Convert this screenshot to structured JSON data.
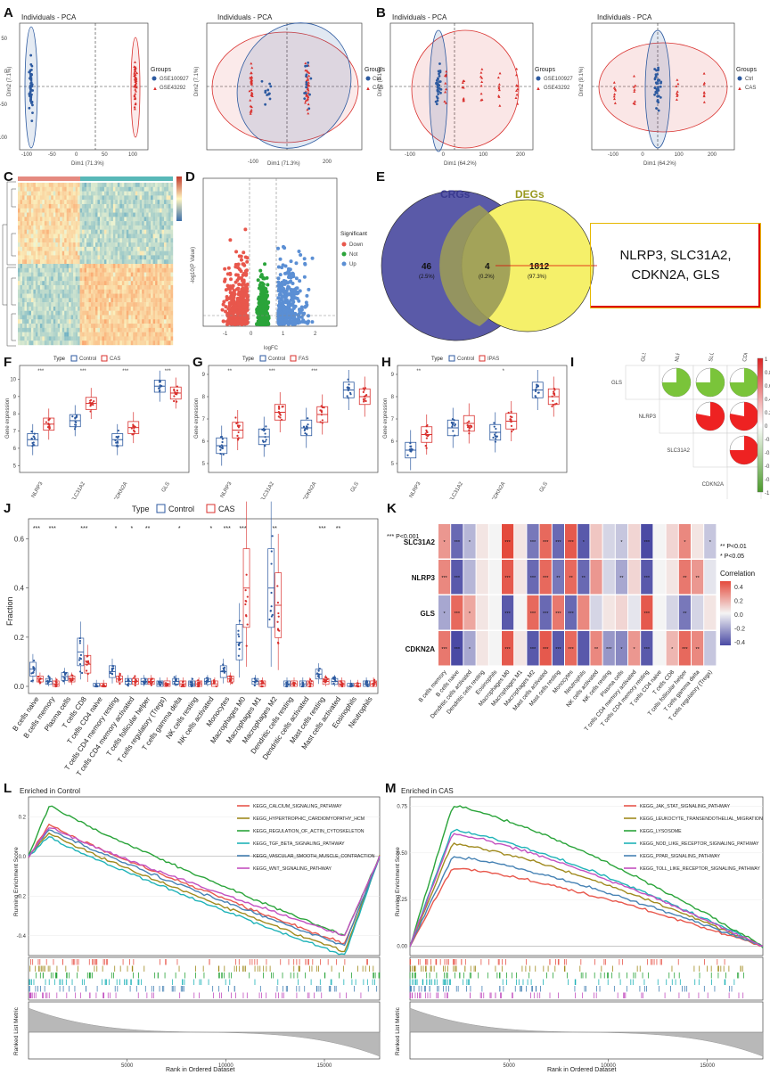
{
  "panels": {
    "A": "A",
    "B": "B",
    "C": "C",
    "D": "D",
    "E": "E",
    "F": "F",
    "G": "G",
    "H": "H",
    "I": "I",
    "J": "J",
    "K": "K",
    "L": "L",
    "M": "M"
  },
  "pca": {
    "title": "Individuals - PCA",
    "dim2_a": "Dim2 (7.1%)",
    "dim1_a": "Dim1 (71.3%)",
    "dim2_b": "Dim2 (9.1%)",
    "dim1_b": "Dim1 (64.2%)",
    "groups_label": "Groups",
    "a1_groups": [
      "GSE100927",
      "GSE43292"
    ],
    "a2_groups": [
      "Ctrl",
      "CAS"
    ],
    "a1_xticks": [
      "-100",
      "-50",
      "0",
      "50",
      "100"
    ],
    "a2_xticks": [
      "-200",
      "-100",
      "0",
      "100",
      "200"
    ],
    "b1_xticks": [
      "-100",
      "0",
      "100",
      "200"
    ],
    "b2_xticks": [
      "-100",
      "0",
      "100",
      "200"
    ],
    "yticks": [
      "50",
      "0",
      "-50",
      "-100"
    ]
  },
  "volcano": {
    "xlabel": "logFC",
    "ylabel": "-log10(P Value)",
    "legend_title": "Significant",
    "legend": [
      "Down",
      "Not",
      "Up"
    ],
    "xticks": [
      "-1",
      "0",
      "1",
      "2"
    ]
  },
  "venn": {
    "left_label": "CRGs",
    "right_label": "DEGs",
    "left_n": "46",
    "left_pct": "(2.5%)",
    "mid_n": "4",
    "mid_pct": "(0.2%)",
    "right_n": "1812",
    "right_pct": "(97.3%)",
    "genes_line1": "NLRP3, SLC31A2,",
    "genes_line2": "CDKN2A, GLS"
  },
  "boxplots": {
    "ylabel": "Gene expression",
    "type_label": "Type",
    "control": "Control",
    "f_case": "CAS",
    "g_case": "FAS",
    "h_case": "IPAS",
    "genes": [
      "NLRP3",
      "SLC31A2",
      "CDKN2A",
      "GLS"
    ],
    "f_sig": [
      "***",
      "***",
      "***",
      "***"
    ],
    "g_sig": [
      "**",
      "***",
      "***"
    ],
    "h_sig": [
      "**",
      "*"
    ],
    "f_yticks": [
      "10",
      "9",
      "8",
      "7",
      "6",
      "5"
    ],
    "g_yticks": [
      "9",
      "8",
      "7",
      "6",
      "5"
    ],
    "h_yticks": [
      "9",
      "8",
      "7",
      "6",
      "5"
    ]
  },
  "corr_matrix": {
    "genes": [
      "GLS",
      "NLRP3",
      "SLC31A2",
      "CDKN2A"
    ],
    "scale": [
      "1",
      "0.8",
      "0.6",
      "0.4",
      "0.2",
      "0",
      "-0.2",
      "-0.4",
      "-0.6",
      "-0.8",
      "-1"
    ]
  },
  "immune": {
    "ylabel": "Fraction",
    "type_label": "Type",
    "control": "Control",
    "case": "CAS",
    "yticks": [
      "0.6",
      "0.4",
      "0.2",
      "0.0"
    ],
    "cells": [
      "B cells naive",
      "B cells memory",
      "Plasma cells",
      "T cells CD8",
      "T cells CD4 naive",
      "T cells CD4 memory resting",
      "T cells CD4 memory activated",
      "T cells follicular helper",
      "T cells regulatory (Tregs)",
      "T cells gamma delta",
      "NK cells resting",
      "NK cells activated",
      "Monocytes",
      "Macrophages M0",
      "Macrophages M1",
      "Macrophages M2",
      "Dendritic cells resting",
      "Dendritic cells activated",
      "Mast cells resting",
      "Mast cells activated",
      "Eosinophils",
      "Neutrophils"
    ],
    "sig": [
      "***",
      "***",
      "",
      "***",
      "",
      "*",
      "*",
      "**",
      "",
      "*",
      "",
      "*",
      "***",
      "***",
      "",
      "**",
      "",
      "",
      "***",
      "**",
      "",
      ""
    ],
    "control_median": [
      0.07,
      0.02,
      0.04,
      0.14,
      0.0,
      0.06,
      0.02,
      0.02,
      0.01,
      0.02,
      0.01,
      0.02,
      0.06,
      0.18,
      0.02,
      0.4,
      0.01,
      0.01,
      0.05,
      0.02,
      0.0,
      0.01
    ],
    "case_median": [
      0.03,
      0.01,
      0.03,
      0.09,
      0.0,
      0.03,
      0.02,
      0.02,
      0.01,
      0.01,
      0.01,
      0.01,
      0.03,
      0.4,
      0.01,
      0.33,
      0.01,
      0.01,
      0.02,
      0.01,
      0.0,
      0.01
    ]
  },
  "corr_heatmap": {
    "rows": [
      "SLC31A2",
      "NLRP3",
      "GLS",
      "CDKN2A"
    ],
    "cols": [
      "B cells memory",
      "B cells naive",
      "Dendritic cells activated",
      "Dendritic cells resting",
      "Eosinophils",
      "Macrophages M0",
      "Macrophages M1",
      "Macrophages M2",
      "Mast cells activated",
      "Mast cells resting",
      "Monocytes",
      "Neutrophils",
      "NK cells activated",
      "NK cells resting",
      "Plasma cells",
      "T cells CD4 memory activated",
      "T cells CD4 memory resting",
      "T cells CD4 naive",
      "T cells CD8",
      "T cells follicular helper",
      "T cells gamma delta",
      "T cells regulatory (Tregs)"
    ],
    "values": [
      [
        0.3,
        -0.45,
        -0.2,
        0.05,
        0.0,
        0.55,
        0.05,
        -0.4,
        0.45,
        -0.45,
        0.5,
        -0.5,
        0.15,
        -0.1,
        -0.15,
        0.1,
        -0.55,
        0.0,
        0.1,
        0.35,
        0.05,
        -0.15
      ],
      [
        0.35,
        -0.5,
        -0.2,
        0.05,
        0.0,
        0.5,
        0.05,
        -0.45,
        0.45,
        -0.4,
        0.45,
        -0.45,
        0.3,
        -0.1,
        -0.25,
        0.1,
        -0.5,
        0.0,
        0.05,
        0.4,
        0.3,
        -0.05
      ],
      [
        -0.25,
        0.45,
        0.25,
        0.05,
        0.0,
        -0.5,
        0.0,
        0.45,
        -0.45,
        0.4,
        -0.45,
        0.35,
        -0.1,
        0.05,
        0.1,
        -0.05,
        0.5,
        0.0,
        -0.1,
        -0.4,
        -0.1,
        0.05
      ],
      [
        0.4,
        -0.55,
        -0.25,
        0.05,
        0.0,
        0.5,
        0.05,
        -0.5,
        0.5,
        -0.5,
        0.45,
        -0.5,
        0.35,
        -0.3,
        -0.35,
        0.3,
        -0.5,
        0.0,
        0.2,
        0.45,
        0.35,
        -0.15
      ]
    ],
    "stars": [
      [
        "*",
        "***",
        "*",
        "",
        "",
        "***",
        "",
        "***",
        "***",
        "***",
        "***",
        "*",
        "",
        "",
        "*",
        "",
        "***",
        "",
        "",
        "*",
        "",
        "*"
      ],
      [
        "***",
        "***",
        "",
        "",
        "",
        "***",
        "",
        "***",
        "***",
        "**",
        "**",
        "**",
        "",
        "",
        "**",
        "",
        "***",
        "",
        "",
        "**",
        "**",
        ""
      ],
      [
        "*",
        "***",
        "*",
        "",
        "",
        "***",
        "",
        "***",
        "***",
        "***",
        "***",
        "",
        "",
        "",
        "",
        "",
        "***",
        "",
        "",
        "**",
        "",
        ""
      ],
      [
        "***",
        "***",
        "*",
        "",
        "",
        "***",
        "",
        "***",
        "***",
        "***",
        "***",
        "",
        "**",
        "***",
        "*",
        "*",
        "***",
        "",
        "*",
        "***",
        "**",
        ""
      ]
    ],
    "sig_legend": [
      "*** P<0.001",
      "** P<0.01",
      "* P<0.05"
    ],
    "legend_title": "Correlation",
    "scale_ticks": [
      "0.4",
      "0.2",
      "0.0",
      "-0.2",
      "-0.4"
    ]
  },
  "gsea_control": {
    "title": "Enriched in Control",
    "ylabel_top": "Running Enrichment Score",
    "ylabel_bottom": "Ranked List Metric",
    "xlabel": "Rank in Ordered Dataset",
    "xticks": [
      "5000",
      "10000",
      "15000"
    ],
    "yticks": [
      "0.2",
      "0.0",
      "-0.2",
      "-0.4"
    ],
    "pathways": [
      "KEGG_CALCIUM_SIGNALING_PATHWAY",
      "KEGG_HYPERTROPHIC_CARDIOMYOPATHY_HCM",
      "KEGG_REGULATION_OF_ACTIN_CYTOSKELETON",
      "KEGG_TGF_BETA_SIGNALING_PATHWAY",
      "KEGG_VASCULAR_SMOOTH_MUSCLE_CONTRACTION",
      "KEGG_WNT_SIGNALING_PATHWAY"
    ],
    "colors": [
      "#e8574c",
      "#a08a1e",
      "#2aa43a",
      "#1fb3b8",
      "#4682b4",
      "#c350c0"
    ]
  },
  "gsea_cas": {
    "title": "Enriched in CAS",
    "ylabel_top": "Running Enrichment Score",
    "ylabel_bottom": "Ranked List Metric",
    "xlabel": "Rank in Ordered Dataset",
    "xticks": [
      "5000",
      "10000",
      "15000"
    ],
    "yticks": [
      "0.75",
      "0.50",
      "0.25",
      "0.00"
    ],
    "pathways": [
      "KEGG_JAK_STAT_SIGNALING_PATHWAY",
      "KEGG_LEUKOCYTE_TRANSENDOTHELIAL_MIGRATION",
      "KEGG_LYSOSOME",
      "KEGG_NOD_LIKE_RECEPTOR_SIGNALING_PATHWAY",
      "KEGG_PPAR_SIGNALING_PATHWAY",
      "KEGG_TOLL_LIKE_RECEPTOR_SIGNALING_PATHWAY"
    ],
    "colors": [
      "#e8574c",
      "#a08a1e",
      "#2aa43a",
      "#1fb3b8",
      "#4682b4",
      "#c350c0"
    ]
  },
  "colors": {
    "control": "#2d5aa0",
    "case": "#d9312e",
    "venn_left": "#5a5aa8",
    "venn_right": "#f5f06a"
  }
}
